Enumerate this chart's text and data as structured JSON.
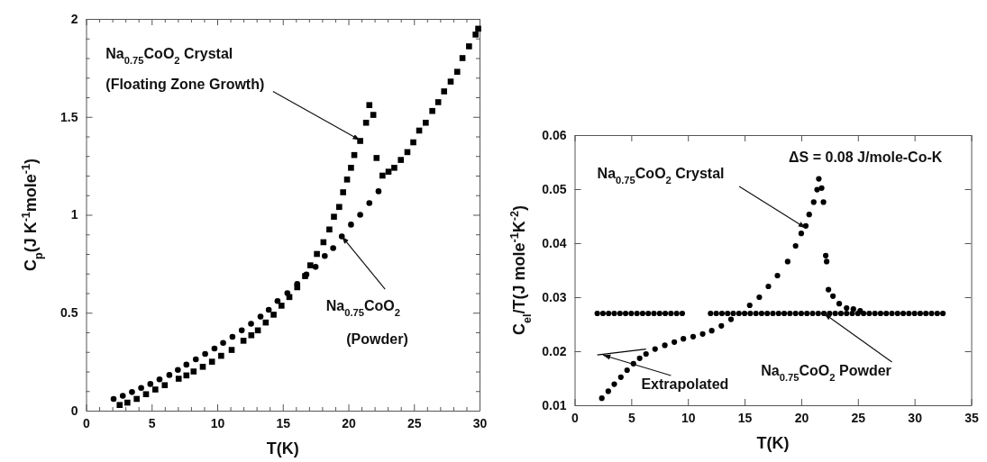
{
  "chart_data": [
    {
      "type": "scatter",
      "xlabel": "T(K)",
      "ylabel": "C$_{p}$(J K$^{-1}$mole$^{-1}$)",
      "xlim": [
        0,
        30
      ],
      "ylim": [
        0,
        2
      ],
      "xticks": [
        0,
        {
          "value": 1,
          "label": null
        },
        {
          "value": 2,
          "label": null
        },
        {
          "value": 3,
          "label": null
        },
        {
          "value": 4,
          "label": null
        },
        5,
        {
          "value": 6,
          "label": null
        },
        {
          "value": 7,
          "label": null
        },
        {
          "value": 8,
          "label": null
        },
        {
          "value": 9,
          "label": null
        },
        10,
        {
          "value": 11,
          "label": null
        },
        {
          "value": 12,
          "label": null
        },
        {
          "value": 13,
          "label": null
        },
        {
          "value": 14,
          "label": null
        },
        15,
        {
          "value": 16,
          "label": null
        },
        {
          "value": 17,
          "label": null
        },
        {
          "value": 18,
          "label": null
        },
        {
          "value": 19,
          "label": null
        },
        20,
        {
          "value": 21,
          "label": null
        },
        {
          "value": 22,
          "label": null
        },
        {
          "value": 23,
          "label": null
        },
        {
          "value": 24,
          "label": null
        },
        25,
        {
          "value": 26,
          "label": null
        },
        {
          "value": 27,
          "label": null
        },
        {
          "value": 28,
          "label": null
        },
        {
          "value": 29,
          "label": null
        },
        30
      ],
      "yticks": [
        0,
        {
          "value": 0.1,
          "label": null
        },
        {
          "value": 0.2,
          "label": null
        },
        {
          "value": 0.3,
          "label": null
        },
        {
          "value": 0.4,
          "label": null
        },
        0.5,
        {
          "value": 0.6,
          "label": null
        },
        {
          "value": 0.7,
          "label": null
        },
        {
          "value": 0.8,
          "label": null
        },
        {
          "value": 0.9,
          "label": null
        },
        1,
        {
          "value": 1.1,
          "label": null
        },
        {
          "value": 1.2,
          "label": null
        },
        {
          "value": 1.3,
          "label": null
        },
        {
          "value": 1.4,
          "label": null
        },
        1.5,
        {
          "value": 1.6,
          "label": null
        },
        {
          "value": 1.7,
          "label": null
        },
        {
          "value": 1.8,
          "label": null
        },
        {
          "value": 1.9,
          "label": null
        },
        2
      ],
      "grid": false,
      "series": [
        {
          "color": "#000000",
          "marker": "square",
          "x": [
            2.56,
            3.15,
            3.86,
            4.57,
            5.28,
            6.0,
            7.06,
            7.65,
            8.2,
            8.9,
            9.6,
            10.3,
            11.1,
            12.0,
            12.6,
            13.1,
            13.7,
            14.3,
            14.9,
            15.5,
            16.1,
            16.7,
            17.1,
            17.6,
            18.1,
            18.55,
            18.9,
            19.3,
            19.6,
            19.9,
            20.2,
            20.45,
            20.9,
            21.35,
            21.6,
            21.9,
            22.15,
            22.6,
            23.06,
            23.5,
            24.0,
            24.5,
            24.95,
            25.4,
            25.9,
            26.4,
            26.85,
            27.3,
            27.8,
            28.3,
            28.7,
            29.2,
            29.7,
            29.9
          ],
          "values": [
            0.029,
            0.041,
            0.06,
            0.084,
            0.108,
            0.13,
            0.163,
            0.18,
            0.2,
            0.224,
            0.25,
            0.28,
            0.31,
            0.357,
            0.385,
            0.41,
            0.45,
            0.49,
            0.536,
            0.58,
            0.63,
            0.687,
            0.742,
            0.8,
            0.86,
            0.925,
            0.99,
            1.04,
            1.115,
            1.18,
            1.24,
            1.305,
            1.377,
            1.47,
            1.56,
            1.51,
            1.29,
            1.2,
            1.22,
            1.24,
            1.28,
            1.32,
            1.37,
            1.43,
            1.47,
            1.53,
            1.575,
            1.63,
            1.68,
            1.73,
            1.8,
            1.86,
            1.92,
            1.95
          ]
        },
        {
          "color": "#000000",
          "marker": "circle",
          "x": [
            2.1,
            2.8,
            3.5,
            4.2,
            4.9,
            5.6,
            6.35,
            7.0,
            7.65,
            8.37,
            9.08,
            9.79,
            10.45,
            11.16,
            11.87,
            12.58,
            13.3,
            13.93,
            14.6,
            15.35,
            16.1,
            16.8,
            17.5,
            18.2,
            18.84,
            19.5,
            20.2,
            20.9,
            21.6,
            22.3
          ],
          "values": [
            0.06,
            0.076,
            0.095,
            0.116,
            0.136,
            0.16,
            0.182,
            0.208,
            0.235,
            0.262,
            0.29,
            0.317,
            0.346,
            0.377,
            0.41,
            0.444,
            0.48,
            0.515,
            0.56,
            0.6,
            0.647,
            0.695,
            0.734,
            0.79,
            0.83,
            0.89,
            0.95,
            1.0,
            1.06,
            1.12
          ]
        }
      ],
      "annotations": [
        "Na$_{0.75}$CoO$_{2}$ Crystal",
        {
          "text": "(Floating Zone Growth)",
          "x": 20.9,
          "y": 1.38
        },
        {
          "text": "Na$_{0.75}$CoO$_{2}$",
          "x": 19.5,
          "y": 0.89
        },
        "(Powder)"
      ]
    },
    {
      "type": "scatter",
      "xlabel": "T(K)",
      "ylabel": "C$_{el}$/T(J mole$^{-1}$K$^{-2}$)",
      "xlim": [
        0,
        35
      ],
      "ylim": [
        0.01,
        0.06
      ],
      "xticks": [
        0,
        5,
        10,
        15,
        20,
        25,
        30,
        35
      ],
      "yticks": [
        0.01,
        0.02,
        0.03,
        0.04,
        0.05,
        0.06
      ],
      "grid": false,
      "series": [
        {
          "color": "#000000",
          "marker": "circle",
          "x": [
            2.4,
            2.97,
            3.5,
            4.08,
            4.63,
            5.19,
            5.74,
            6.3,
            7.1,
            7.96,
            8.8,
            9.6,
            10.46,
            11.3,
            12.1,
            12.95,
            13.8,
            15.45,
            16.3,
            17.1,
            17.9,
            18.8,
            19.5,
            20.0,
            20.4,
            20.7,
            21.1,
            21.4,
            21.55,
            21.8,
            21.96,
            22.16,
            22.24,
            22.4,
            22.8,
            23.35,
            24.0,
            24.6,
            25.2
          ],
          "values": [
            0.0113,
            0.0126,
            0.0139,
            0.0152,
            0.0165,
            0.0177,
            0.0187,
            0.0195,
            0.0204,
            0.0211,
            0.0217,
            0.0223,
            0.0227,
            0.0232,
            0.0238,
            0.0247,
            0.0259,
            0.0285,
            0.03,
            0.032,
            0.034,
            0.0366,
            0.0395,
            0.0418,
            0.0432,
            0.0453,
            0.0476,
            0.0499,
            0.0519,
            0.0502,
            0.0476,
            0.0377,
            0.0366,
            0.0314,
            0.0302,
            0.0288,
            0.028,
            0.0278,
            0.0275
          ]
        },
        {
          "color": "#000000",
          "marker": "circle",
          "x": [
            2,
            2.5,
            3,
            3.5,
            4,
            4.5,
            5,
            5.5,
            6,
            6.5,
            7,
            7.5,
            8,
            8.5,
            9,
            9.5,
            12,
            12.5,
            13,
            13.5,
            14,
            14.5,
            15,
            15.5,
            16,
            16.5,
            17,
            17.5,
            18,
            18.5,
            19,
            19.5,
            20,
            20.5,
            21,
            21.5,
            22,
            22.5,
            23,
            23.5,
            24,
            24.5,
            25,
            25.5,
            26,
            26.5,
            27,
            27.5,
            28,
            28.5,
            29,
            29.5,
            30,
            30.5,
            31,
            31.5,
            32,
            32.5
          ],
          "values": [
            0.027,
            0.027,
            0.027,
            0.027,
            0.027,
            0.027,
            0.027,
            0.027,
            0.027,
            0.027,
            0.027,
            0.027,
            0.027,
            0.027,
            0.027,
            0.027,
            0.027,
            0.027,
            0.027,
            0.027,
            0.027,
            0.027,
            0.027,
            0.027,
            0.027,
            0.027,
            0.027,
            0.027,
            0.027,
            0.027,
            0.027,
            0.027,
            0.027,
            0.027,
            0.027,
            0.027,
            0.027,
            0.027,
            0.027,
            0.027,
            0.027,
            0.027,
            0.027,
            0.027,
            0.027,
            0.027,
            0.027,
            0.027,
            0.027,
            0.027,
            0.027,
            0.027,
            0.027,
            0.027,
            0.027,
            0.027,
            0.027,
            0.027
          ]
        },
        {
          "type": "line",
          "color": "#000000",
          "marker": "none",
          "x": [
            2,
            6.3
          ],
          "values": [
            0.0193,
            0.0204
          ]
        }
      ],
      "annotations": [
        "ΔS = 0.08 J/mole-Co-K",
        {
          "text": "Na$_{0.75}$CoO$_{2}$ Crystal",
          "x": 20.4,
          "y": 0.0428
        },
        {
          "text": "Na$_{0.75}$CoO$_{2}$ Powder",
          "x": 22,
          "y": 0.027
        },
        {
          "text": "Extrapolated",
          "x": 2.5,
          "y": 0.0193
        }
      ]
    }
  ]
}
